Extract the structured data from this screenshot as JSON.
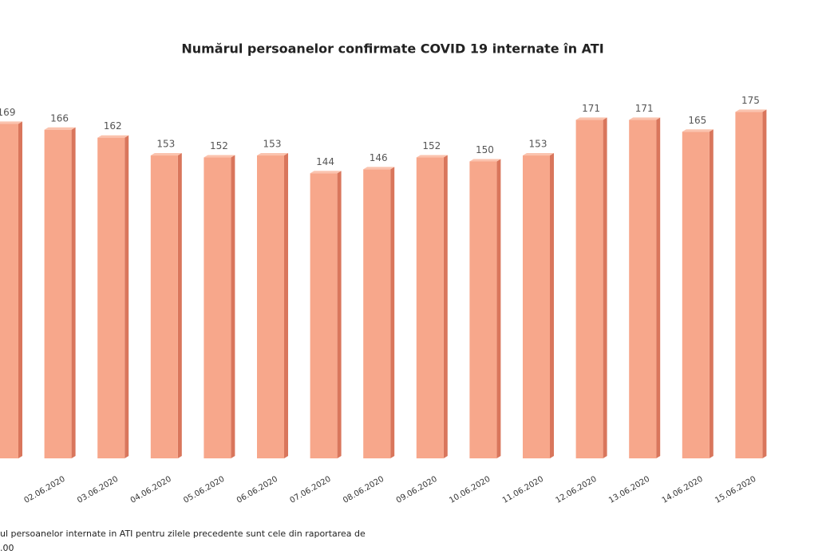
{
  "chart_data": {
    "type": "bar",
    "title": "Numărul persoanelor confirmate COVID 19 internate în ATI",
    "categories": [
      null,
      "02.06.2020",
      "03.06.2020",
      "04.06.2020",
      "05.06.2020",
      "06.06.2020",
      "07.06.2020",
      "08.06.2020",
      "09.06.2020",
      "10.06.2020",
      "11.06.2020",
      "12.06.2020",
      "13.06.2020",
      "14.06.2020",
      "15.06.2020"
    ],
    "values": [
      169,
      166,
      162,
      153,
      152,
      153,
      144,
      146,
      152,
      150,
      153,
      171,
      171,
      165,
      175
    ],
    "color": "#f7a78b",
    "ylim": [
      0,
      180
    ],
    "notes": [
      "ul persoanelor internate in ATI pentru zilele precedente sunt cele din raportarea de",
      ".00"
    ]
  }
}
